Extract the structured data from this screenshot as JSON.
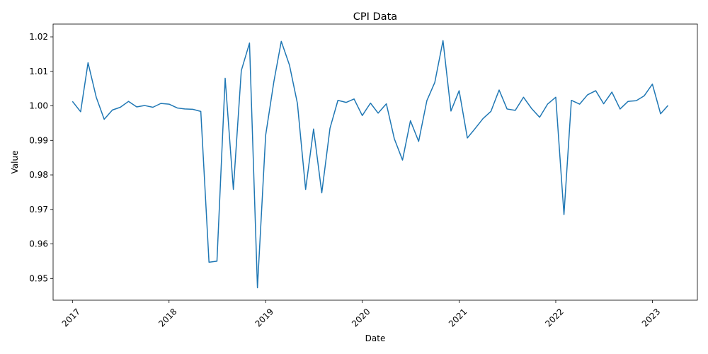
{
  "chart_data": {
    "type": "line",
    "title": "CPI Data",
    "xlabel": "Date",
    "ylabel": "Value",
    "xlim": [
      "2016-10-20",
      "2023-06-20"
    ],
    "ylim": [
      0.9437,
      1.0237
    ],
    "grid": false,
    "x_ticks": [
      "2017",
      "2018",
      "2019",
      "2020",
      "2021",
      "2022",
      "2023"
    ],
    "y_ticks": [
      "0.95",
      "0.96",
      "0.97",
      "0.98",
      "0.99",
      "1.00",
      "1.01",
      "1.02"
    ],
    "series": [
      {
        "color": "#1f77b4",
        "x": [
          "2017-01-01",
          "2017-02-01",
          "2017-03-01",
          "2017-04-01",
          "2017-05-01",
          "2017-06-01",
          "2017-07-01",
          "2017-08-01",
          "2017-09-01",
          "2017-10-01",
          "2017-11-01",
          "2017-12-01",
          "2018-01-01",
          "2018-02-01",
          "2018-03-01",
          "2018-04-01",
          "2018-05-01",
          "2018-06-01",
          "2018-07-01",
          "2018-08-01",
          "2018-09-01",
          "2018-10-01",
          "2018-11-01",
          "2018-12-01",
          "2019-01-01",
          "2019-02-01",
          "2019-03-01",
          "2019-04-01",
          "2019-05-01",
          "2019-06-01",
          "2019-07-01",
          "2019-08-01",
          "2019-09-01",
          "2019-10-01",
          "2019-11-01",
          "2019-12-01",
          "2020-01-01",
          "2020-02-01",
          "2020-03-01",
          "2020-04-01",
          "2020-05-01",
          "2020-06-01",
          "2020-07-01",
          "2020-08-01",
          "2020-09-01",
          "2020-10-01",
          "2020-11-01",
          "2020-12-01",
          "2021-01-01",
          "2021-02-01",
          "2021-03-01",
          "2021-04-01",
          "2021-05-01",
          "2021-06-01",
          "2021-07-01",
          "2021-08-01",
          "2021-09-01",
          "2021-10-01",
          "2021-11-01",
          "2021-12-01",
          "2022-01-01",
          "2022-02-01",
          "2022-03-01",
          "2022-04-01",
          "2022-05-01",
          "2022-06-01",
          "2022-07-01",
          "2022-08-01",
          "2022-09-01",
          "2022-10-01",
          "2022-11-01",
          "2022-12-01",
          "2023-01-01",
          "2023-02-01",
          "2023-03-01"
        ],
        "values": [
          1.0013,
          0.9983,
          1.0125,
          1.0025,
          0.9961,
          0.9988,
          0.9996,
          1.0013,
          0.9997,
          1.0001,
          0.9996,
          1.0007,
          1.0005,
          0.9994,
          0.9991,
          0.999,
          0.9984,
          0.9547,
          0.955,
          1.008,
          0.9758,
          1.0102,
          1.0182,
          0.9473,
          0.9915,
          1.007,
          1.0187,
          1.0118,
          1.0007,
          0.9758,
          0.9933,
          0.9748,
          0.9935,
          1.0016,
          1.001,
          1.002,
          0.9972,
          1.0008,
          0.9979,
          1.0006,
          0.9905,
          0.9843,
          0.9957,
          0.9897,
          1.0015,
          1.0068,
          1.0189,
          0.9985,
          1.0044,
          0.9907,
          0.9933,
          0.9963,
          0.9984,
          1.0046,
          0.9991,
          0.9987,
          1.0025,
          0.9993,
          0.9967,
          1.0005,
          1.0025,
          0.9685,
          1.0016,
          1.0005,
          1.0032,
          1.0044,
          1.0006,
          1.004,
          0.9991,
          1.0013,
          1.0015,
          1.0029,
          1.0063,
          0.9977,
          1.0001
        ]
      }
    ]
  }
}
